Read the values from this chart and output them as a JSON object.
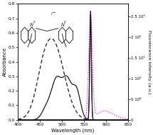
{
  "xlim": [
    400,
    650
  ],
  "ylim_abs": [
    0,
    0.8
  ],
  "ylim_fl": [
    0,
    280000.0
  ],
  "yticks_abs": [
    0,
    0.1,
    0.2,
    0.3,
    0.4,
    0.5,
    0.6,
    0.7,
    0.8
  ],
  "yticks_fl": [
    0,
    50000,
    100000,
    150000,
    200000,
    250000
  ],
  "ytick_fl_labels": [
    "0",
    "5 10⁴",
    "1 10⁵",
    "1.5 10⁵",
    "2 10⁵",
    "2.5 10⁵"
  ],
  "xlabel": "Wavelength (nm)",
  "ylabel_left": "Absorbance",
  "ylabel_right": "Fluorescence Intensity (a.u.)",
  "solid_color": "#1a1a1a",
  "dashed_color": "#1a1a1a",
  "dotted_color": "#ff00ff",
  "fig_width": 2.15,
  "fig_height": 1.89,
  "dpi": 100
}
